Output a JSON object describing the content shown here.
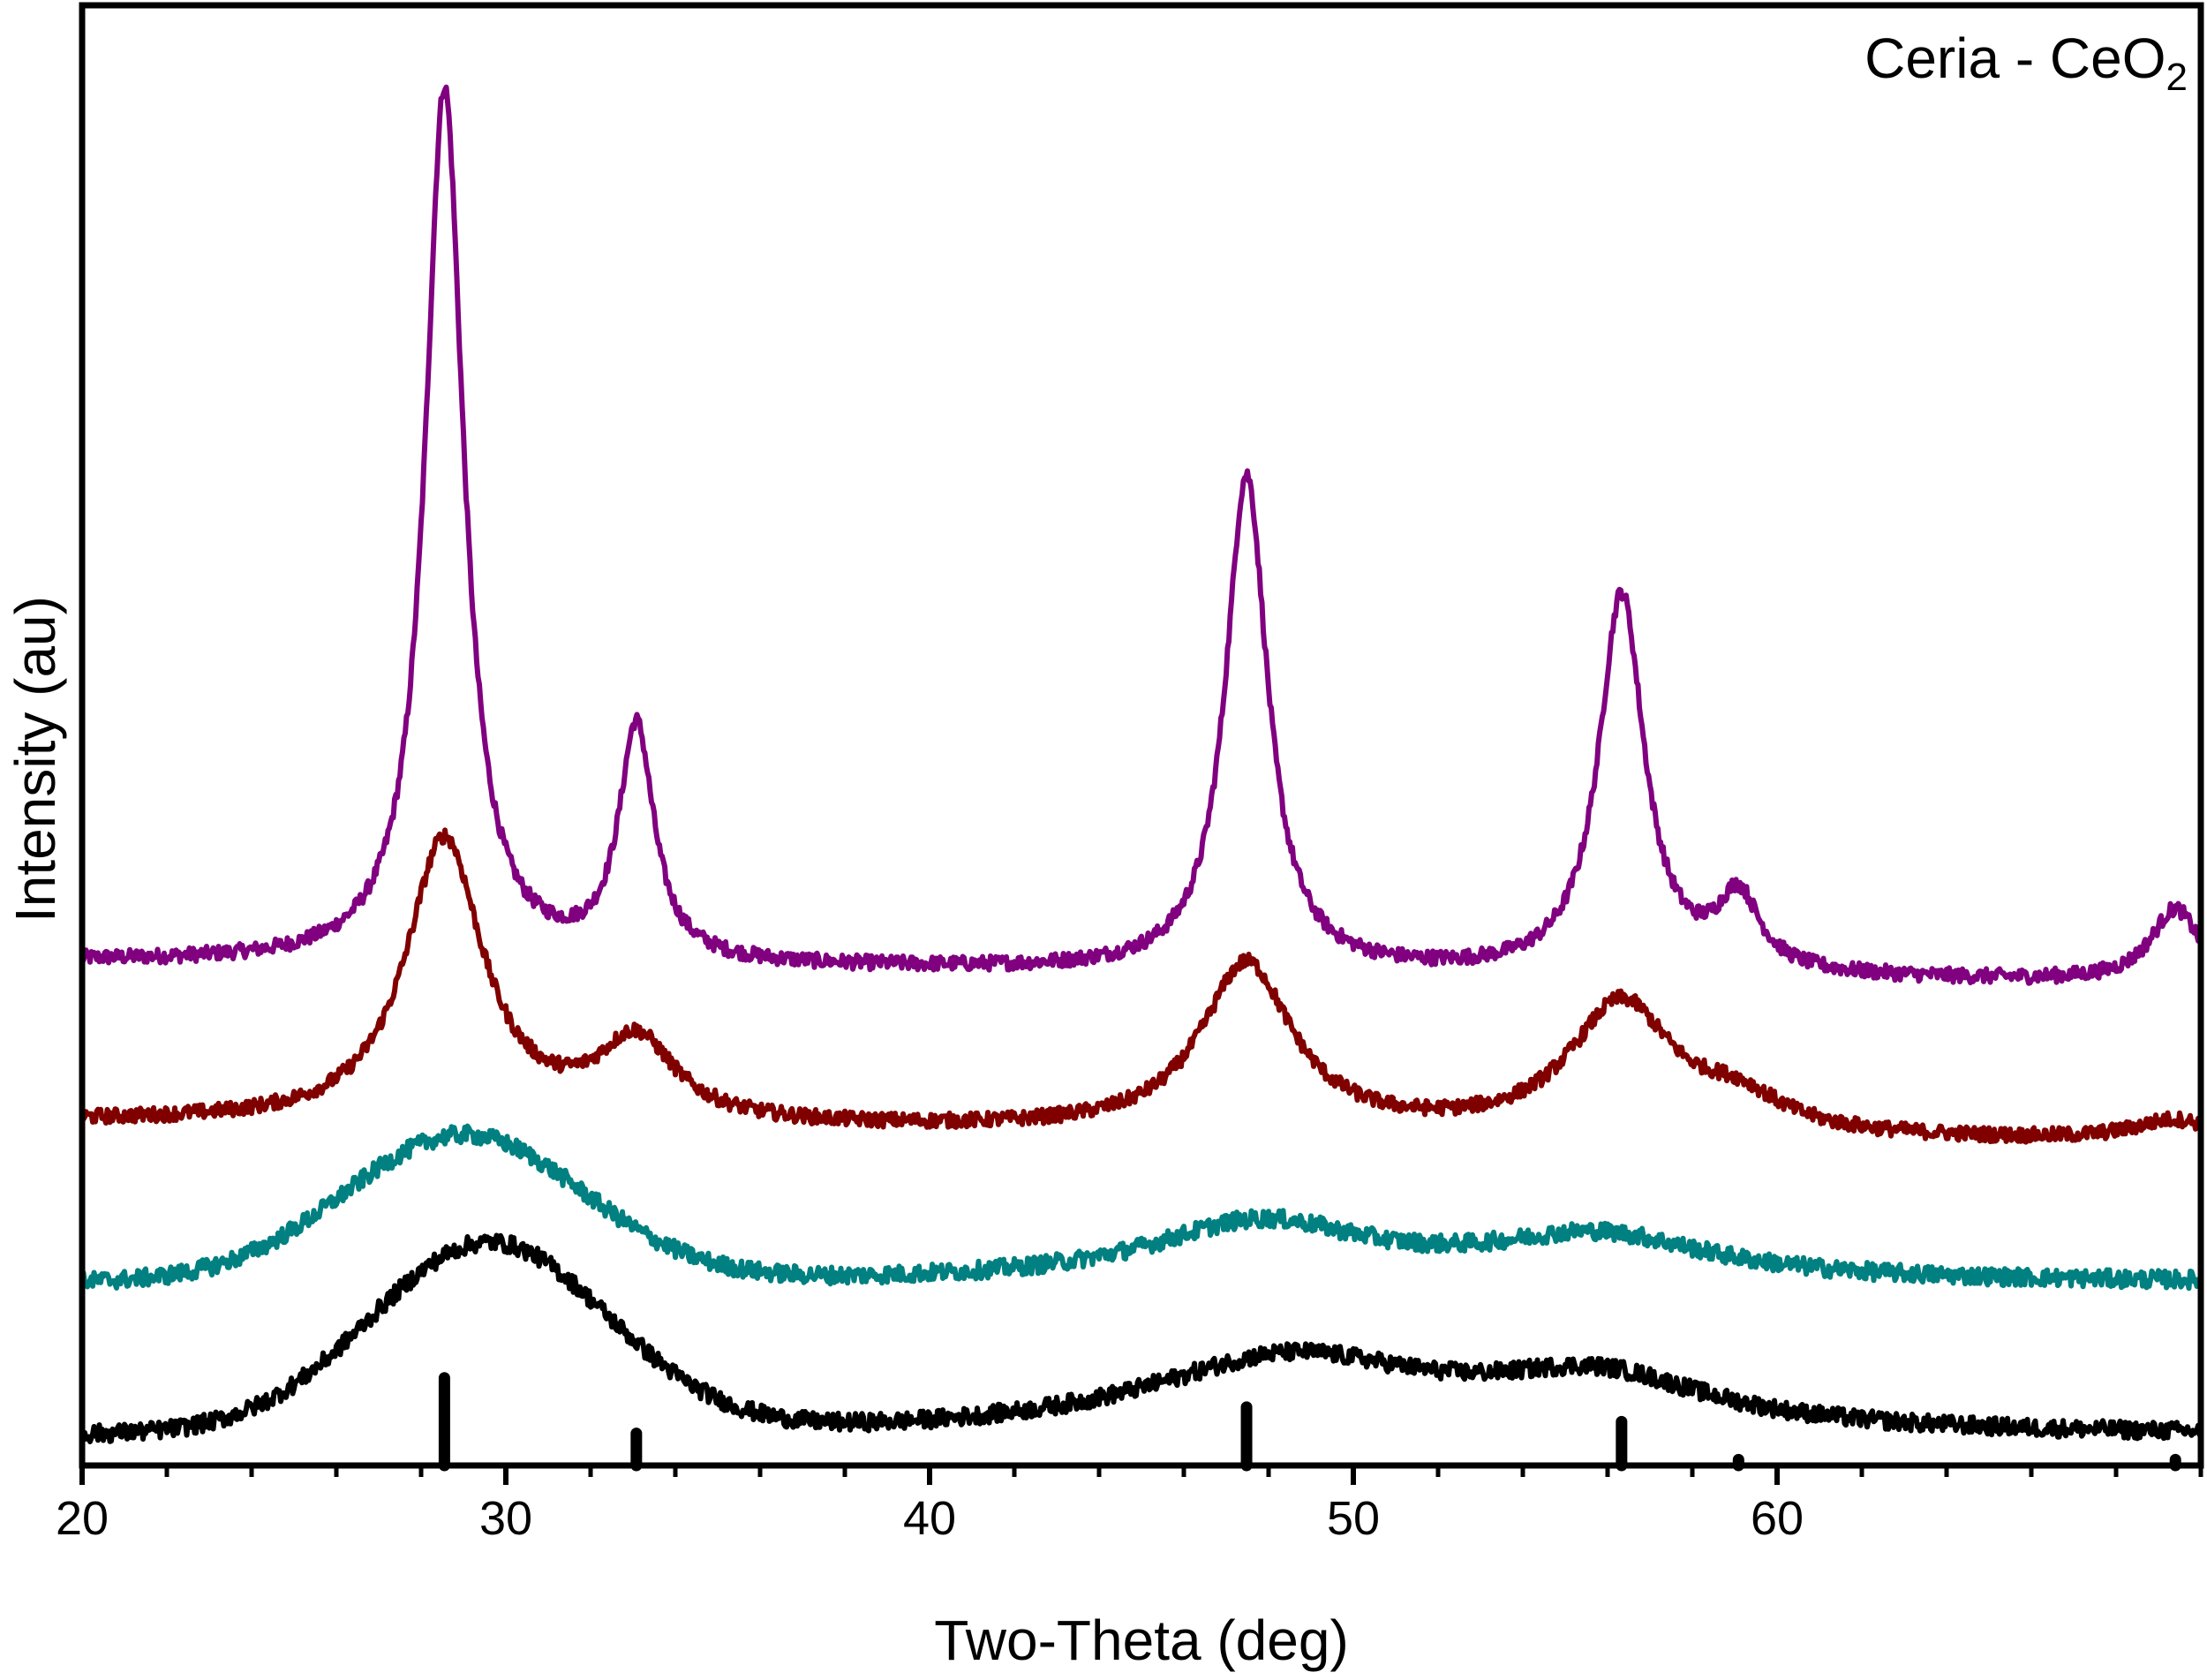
{
  "chart_data": {
    "type": "line",
    "title": "",
    "annotation": {
      "text": "Ceria - CeO",
      "subscript": "2"
    },
    "xlabel": "Two-Theta (deg)",
    "ylabel": "Intensity (au)",
    "xlim": [
      20,
      70
    ],
    "ylim": [
      0,
      1
    ],
    "xticks_major": [
      20,
      30,
      40,
      50,
      60
    ],
    "xticks_minor_step": 1,
    "y_ticks_shown": false,
    "grid": false,
    "legend": "none",
    "series": [
      {
        "name": "purple pattern",
        "color": "#800080",
        "baseline": 0.345,
        "slope": -0.0003,
        "hump": {
          "center": 29.5,
          "width": 5,
          "height": 0.0
        },
        "peaks": [
          {
            "center": 28.55,
            "height": 0.6,
            "hwhm": 0.55
          },
          {
            "center": 33.08,
            "height": 0.16,
            "hwhm": 0.5
          },
          {
            "center": 47.48,
            "height": 0.34,
            "hwhm": 0.6
          },
          {
            "center": 56.33,
            "height": 0.26,
            "hwhm": 0.65
          },
          {
            "center": 59.09,
            "height": 0.05,
            "hwhm": 0.6
          },
          {
            "center": 69.4,
            "height": 0.05,
            "hwhm": 0.7
          }
        ],
        "noise": 0.005
      },
      {
        "name": "dark red pattern",
        "color": "#800000",
        "baseline": 0.235,
        "slope": -0.0003,
        "hump": {
          "center": 29.5,
          "width": 5,
          "height": 0.0
        },
        "peaks": [
          {
            "center": 28.55,
            "height": 0.195,
            "hwhm": 1.1
          },
          {
            "center": 33.08,
            "height": 0.055,
            "hwhm": 1.1
          },
          {
            "center": 47.48,
            "height": 0.115,
            "hwhm": 1.3
          },
          {
            "center": 56.33,
            "height": 0.09,
            "hwhm": 1.5
          },
          {
            "center": 59.09,
            "height": 0.02,
            "hwhm": 1.2
          },
          {
            "center": 69.4,
            "height": 0.015,
            "hwhm": 1.2
          }
        ],
        "noise": 0.005
      },
      {
        "name": "teal pattern",
        "color": "#008080",
        "baseline": 0.125,
        "slope": 0.0,
        "hump": {
          "center": 29.0,
          "width": 2.8,
          "height": 0.1
        },
        "peaks": [
          {
            "center": 47.8,
            "height": 0.04,
            "hwhm": 3.2
          },
          {
            "center": 55.8,
            "height": 0.03,
            "hwhm": 3.2
          }
        ],
        "noise": 0.006
      },
      {
        "name": "black pattern",
        "color": "#000000",
        "baseline": 0.02,
        "slope": 0.0,
        "hump": {
          "center": 29.6,
          "width": 2.8,
          "height": 0.13
        },
        "peaks": [
          {
            "center": 48.5,
            "height": 0.052,
            "hwhm": 4.2
          },
          {
            "center": 55.8,
            "height": 0.035,
            "hwhm": 3.2
          }
        ],
        "noise": 0.006
      }
    ],
    "reference_lines": {
      "name": "CeO2 reference",
      "color": "#000000",
      "positions": [
        28.55,
        33.08,
        47.48,
        56.33,
        59.09,
        69.4
      ],
      "heights": [
        0.06,
        0.022,
        0.04,
        0.03,
        0.004,
        0.004
      ]
    }
  }
}
